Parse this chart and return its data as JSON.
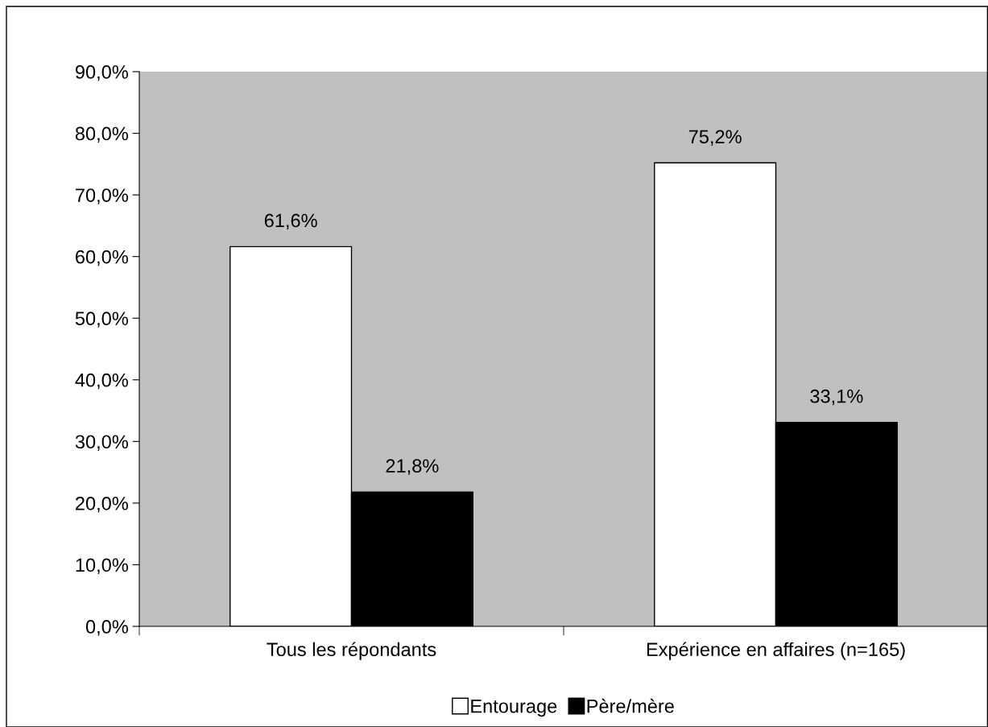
{
  "chart_data": {
    "type": "bar",
    "categories": [
      "Tous les répondants",
      "Expérience en affaires (n=165)"
    ],
    "series": [
      {
        "name": "Entourage",
        "color": "#ffffff",
        "values": [
          61.6,
          75.2
        ],
        "value_labels": [
          "61,6%",
          "75,2%"
        ]
      },
      {
        "name": "Père/mère",
        "color": "#000000",
        "values": [
          21.8,
          33.1
        ],
        "value_labels": [
          "21,8%",
          "33,1%"
        ]
      }
    ],
    "ylim": [
      0,
      90
    ],
    "yticks": [
      {
        "value": 0,
        "label": "0,0%"
      },
      {
        "value": 10,
        "label": "10,0%"
      },
      {
        "value": 20,
        "label": "20,0%"
      },
      {
        "value": 30,
        "label": "30,0%"
      },
      {
        "value": 40,
        "label": "40,0%"
      },
      {
        "value": 50,
        "label": "50,0%"
      },
      {
        "value": 60,
        "label": "60,0%"
      },
      {
        "value": 70,
        "label": "70,0%"
      },
      {
        "value": 80,
        "label": "80,0%"
      },
      {
        "value": 90,
        "label": "90,0%"
      }
    ],
    "grid": false,
    "legend": "bottom"
  }
}
